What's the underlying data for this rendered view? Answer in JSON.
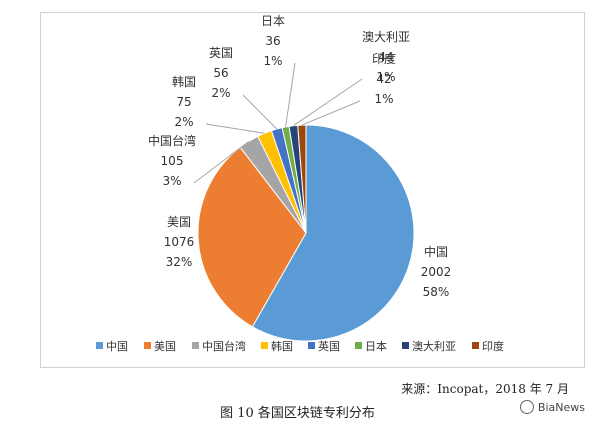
{
  "chart_data": {
    "type": "pie",
    "title": "",
    "categories": [
      "中国",
      "美国",
      "中国台湾",
      "韩国",
      "英国",
      "日本",
      "澳大利亚",
      "印度"
    ],
    "values": [
      2002,
      1076,
      105,
      75,
      56,
      36,
      44,
      42
    ],
    "percents": [
      "58%",
      "32%",
      "3%",
      "2%",
      "2%",
      "1%",
      "1%",
      "1%"
    ],
    "colors": [
      "#5b9bd5",
      "#ed7d31",
      "#a5a5a5",
      "#ffc000",
      "#4472c4",
      "#70ad47",
      "#264478",
      "#9e480e"
    ],
    "legend_position": "bottom",
    "data_labels": true
  },
  "source_text": "来源：Incopat，2018 年 7 月",
  "caption": "图 10   各国区块链专利分布",
  "brand": "BiaNews"
}
